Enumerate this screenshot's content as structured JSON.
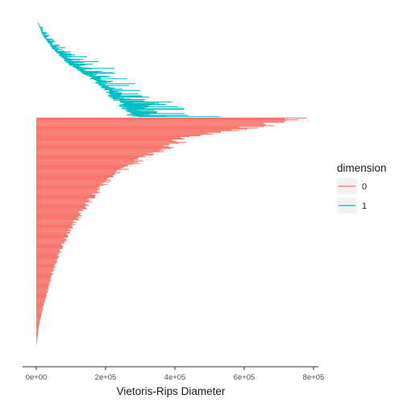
{
  "chart_data": {
    "type": "barcode",
    "title": "",
    "xlabel": "Vietoris-Rips Diameter",
    "ylabel": "",
    "xlim": [
      -22000,
      800000
    ],
    "x_ticks": [
      0,
      200000,
      400000,
      600000,
      800000
    ],
    "x_tick_labels": [
      "0e+00",
      "2e+05",
      "4e+05",
      "6e+05",
      "8e+05"
    ],
    "grid": false,
    "legend": {
      "title": "dimension",
      "placement": "right",
      "entries": [
        {
          "label": "0",
          "color": "#F8766D"
        },
        {
          "label": "1",
          "color": "#00BFC4"
        }
      ]
    },
    "series": [
      {
        "name": "0",
        "color": "#F8766D",
        "bar_count": 270,
        "intervals_sample": [
          {
            "birth": 0,
            "death": 780000
          },
          {
            "birth": 0,
            "death": 440000
          },
          {
            "birth": 0,
            "death": 320000
          },
          {
            "birth": 0,
            "death": 230000
          },
          {
            "birth": 0,
            "death": 170000
          },
          {
            "birth": 0,
            "death": 130000
          },
          {
            "birth": 0,
            "death": 95000
          },
          {
            "birth": 0,
            "death": 70000
          },
          {
            "birth": 0,
            "death": 50000
          },
          {
            "birth": 0,
            "death": 35000
          },
          {
            "birth": 0,
            "death": 20000
          },
          {
            "birth": 0,
            "death": 8000
          },
          {
            "birth": 0,
            "death": 1000
          }
        ]
      },
      {
        "name": "1",
        "color": "#00BFC4",
        "bar_count": 155,
        "intervals_sample": [
          {
            "birth": 4000,
            "death": 6000
          },
          {
            "birth": 20000,
            "death": 40000
          },
          {
            "birth": 50000,
            "death": 90000
          },
          {
            "birth": 90000,
            "death": 200000
          },
          {
            "birth": 150000,
            "death": 250000
          },
          {
            "birth": 200000,
            "death": 320000
          },
          {
            "birth": 240000,
            "death": 420000
          },
          {
            "birth": 280000,
            "death": 520000
          }
        ]
      }
    ]
  }
}
